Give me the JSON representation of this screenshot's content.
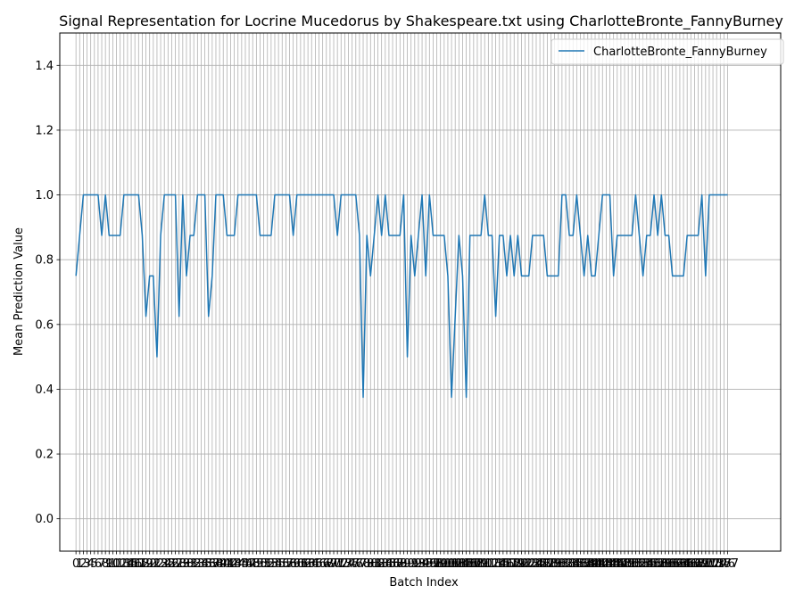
{
  "chart_data": {
    "type": "line",
    "title": "Signal Representation for Locrine Mucedorus by Shakespeare.txt using CharlotteBronte_FannyBurney",
    "xlabel": "Batch Index",
    "ylabel": "Mean Prediction Value",
    "ylim": [
      -0.1,
      1.5
    ],
    "xlim": [
      -4.4,
      191.4
    ],
    "yticks": [
      0.0,
      0.2,
      0.4,
      0.6,
      0.8,
      1.0,
      1.2,
      1.4
    ],
    "ytick_labels": [
      "0.0",
      "0.2",
      "0.4",
      "0.6",
      "0.8",
      "1.0",
      "1.2",
      "1.4"
    ],
    "grid": true,
    "legend_position": "top-right",
    "line_color": "#1f77b4",
    "grid_color": "#b0b0b0",
    "series": [
      {
        "name": "CharlotteBronte_FannyBurney",
        "values": [
          0.75,
          0.875,
          1,
          1,
          1,
          1,
          1,
          0.875,
          1,
          0.875,
          0.875,
          0.875,
          0.875,
          1,
          1,
          1,
          1,
          1,
          0.875,
          0.625,
          0.75,
          0.75,
          0.5,
          0.875,
          1,
          1,
          1,
          1,
          0.625,
          1,
          0.75,
          0.875,
          0.875,
          1,
          1,
          1,
          0.625,
          0.75,
          1,
          1,
          1,
          0.875,
          0.875,
          0.875,
          1,
          1,
          1,
          1,
          1,
          1,
          0.875,
          0.875,
          0.875,
          0.875,
          1,
          1,
          1,
          1,
          1,
          0.875,
          1,
          1,
          1,
          1,
          1,
          1,
          1,
          1,
          1,
          1,
          1,
          0.875,
          1,
          1,
          1,
          1,
          1,
          0.875,
          0.375,
          0.875,
          0.75,
          0.875,
          1,
          0.875,
          1,
          0.875,
          0.875,
          0.875,
          0.875,
          1,
          0.5,
          0.875,
          0.75,
          0.875,
          1,
          0.75,
          1,
          0.875,
          0.875,
          0.875,
          0.875,
          0.75,
          0.375,
          0.625,
          0.875,
          0.75,
          0.375,
          0.875,
          0.875,
          0.875,
          0.875,
          1,
          0.875,
          0.875,
          0.625,
          0.875,
          0.875,
          0.75,
          0.875,
          0.75,
          0.875,
          0.75,
          0.75,
          0.75,
          0.875,
          0.875,
          0.875,
          0.875,
          0.75,
          0.75,
          0.75,
          0.75,
          1,
          1,
          0.875,
          0.875,
          1,
          0.875,
          0.75,
          0.875,
          0.75,
          0.75,
          0.875,
          1,
          1,
          1,
          0.75,
          0.875,
          0.875,
          0.875,
          0.875,
          0.875,
          1,
          0.875,
          0.75,
          0.875,
          0.875,
          1,
          0.875,
          1,
          0.875,
          0.875,
          0.75,
          0.75,
          0.75,
          0.75,
          0.875,
          0.875,
          0.875,
          0.875,
          1,
          0.75,
          1,
          1,
          1,
          1,
          1,
          1
        ]
      }
    ]
  }
}
